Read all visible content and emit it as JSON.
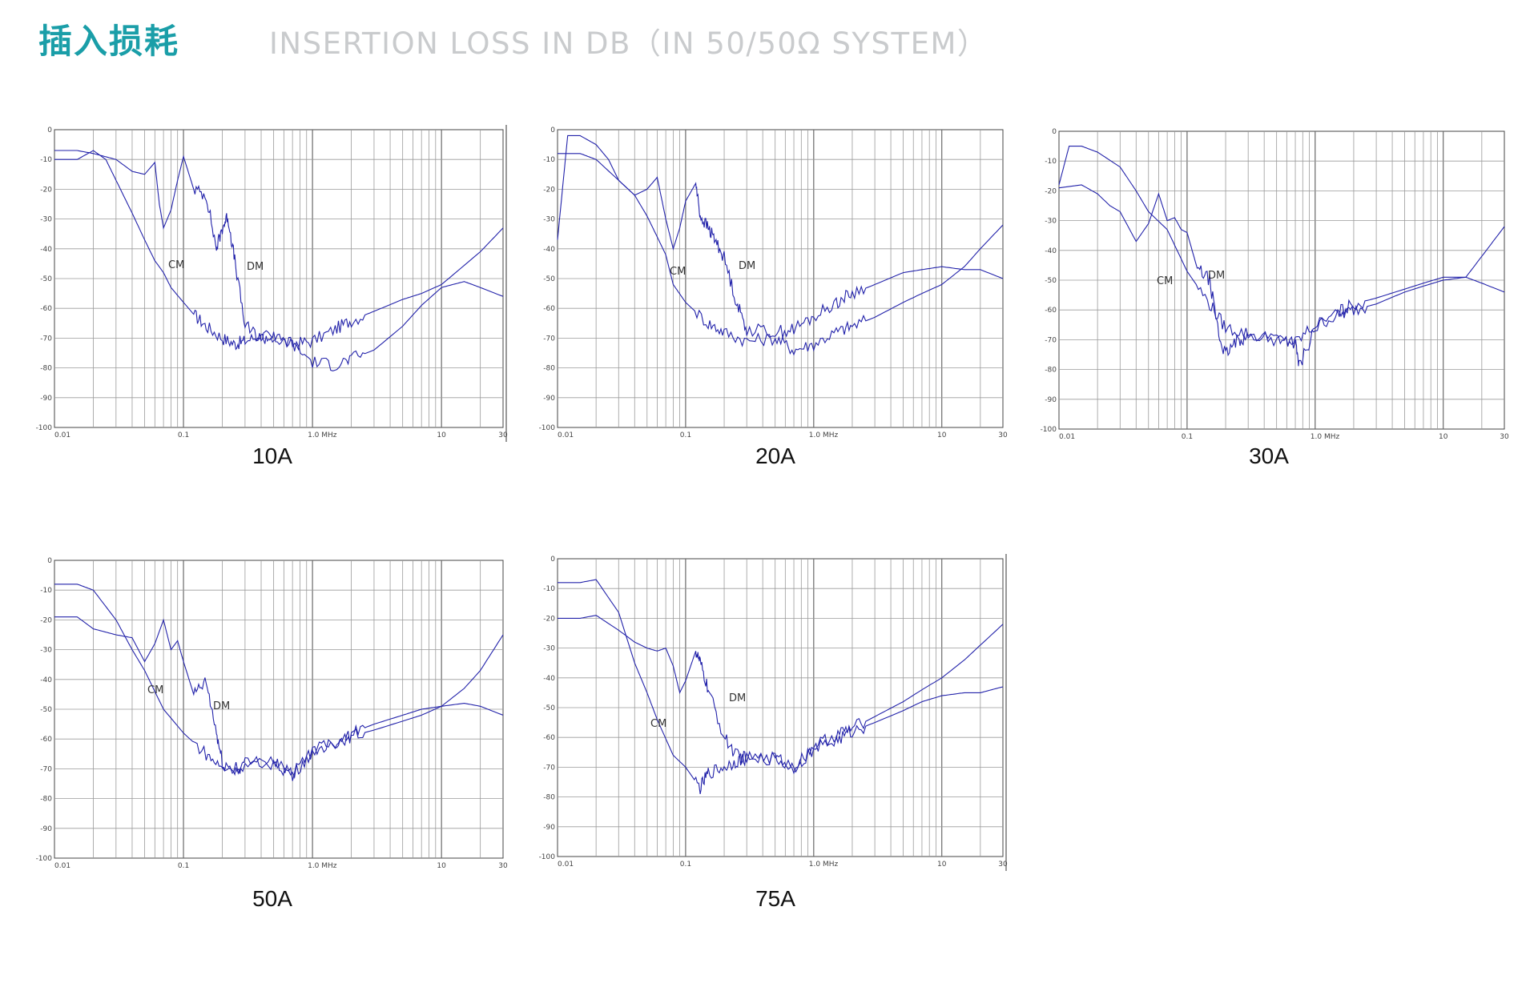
{
  "header": {
    "title_cn": "插入损耗",
    "title_en": "INSERTION LOSS IN DB（IN 50/50Ω SYSTEM）"
  },
  "colors": {
    "accent": "#1a9ea8",
    "subtitle": "#c9cbcd",
    "curve": "#2222aa",
    "grid": "#9a9a9a",
    "grid_major": "#6a6a6a"
  },
  "chart_data": [
    {
      "type": "line",
      "caption": "10A",
      "x_scale": "log",
      "xlim": [
        0.01,
        30
      ],
      "ylim": [
        -100,
        0
      ],
      "x_ticks": [
        "0.01",
        "0.1",
        "1.0  MHz",
        "10",
        "30"
      ],
      "y_ticks": [
        "0",
        "-10",
        "-20",
        "-30",
        "-40",
        "-50",
        "-60",
        "-70",
        "-80",
        "-90",
        "-100"
      ],
      "annotations": [
        "CM",
        "DM"
      ],
      "series": [
        {
          "x": [
            0.01,
            0.015,
            0.02,
            0.025,
            0.03,
            0.04,
            0.05,
            0.06,
            0.07,
            0.08,
            0.1,
            0.12,
            0.15,
            0.2,
            0.25,
            0.3,
            0.4,
            0.5,
            0.7,
            1,
            1.5,
            2,
            3,
            5,
            7,
            10,
            20,
            30
          ],
          "y": [
            -10,
            -10,
            -7,
            -10,
            -17,
            -28,
            -37,
            -44,
            -48,
            -53,
            -58,
            -62,
            -66,
            -70,
            -72,
            -71,
            -69,
            -70,
            -72,
            -71,
            -67,
            -64,
            -61,
            -57,
            -55,
            -52,
            -41,
            -33
          ]
        },
        {
          "x": [
            0.01,
            0.015,
            0.02,
            0.03,
            0.04,
            0.05,
            0.06,
            0.065,
            0.07,
            0.08,
            0.09,
            0.1,
            0.12,
            0.15,
            0.18,
            0.2,
            0.22,
            0.25,
            0.3,
            0.4,
            0.5,
            0.7,
            1,
            1.5,
            2,
            3,
            5,
            7,
            10,
            15,
            20,
            30
          ],
          "y": [
            -7,
            -7,
            -8,
            -10,
            -14,
            -15,
            -11,
            -25,
            -33,
            -27,
            -17,
            -9,
            -20,
            -22,
            -40,
            -33,
            -29,
            -44,
            -66,
            -70,
            -70,
            -72,
            -78,
            -79,
            -77,
            -74,
            -66,
            -59,
            -53,
            -51,
            -53,
            -56
          ]
        }
      ]
    },
    {
      "type": "line",
      "caption": "20A",
      "x_scale": "log",
      "xlim": [
        0.01,
        30
      ],
      "ylim": [
        -100,
        0
      ],
      "x_ticks": [
        "0.01",
        "0.1",
        "1.0  MHz",
        "10",
        "30"
      ],
      "y_ticks": [
        "0",
        "-10",
        "-20",
        "-30",
        "-40",
        "-50",
        "-60",
        "-70",
        "-80",
        "-90",
        "-100"
      ],
      "annotations": [
        "CM",
        "DM"
      ],
      "series": [
        {
          "x": [
            0.01,
            0.015,
            0.02,
            0.03,
            0.04,
            0.05,
            0.06,
            0.07,
            0.08,
            0.1,
            0.15,
            0.2,
            0.3,
            0.5,
            0.7,
            1,
            1.5,
            2,
            3,
            5,
            7,
            10,
            15,
            20,
            30
          ],
          "y": [
            -8,
            -8,
            -10,
            -17,
            -22,
            -29,
            -36,
            -42,
            -52,
            -58,
            -65,
            -68,
            -71,
            -70,
            -74,
            -72,
            -68,
            -66,
            -63,
            -58,
            -55,
            -52,
            -46,
            -40,
            -32
          ]
        },
        {
          "x": [
            0.01,
            0.012,
            0.015,
            0.02,
            0.025,
            0.03,
            0.04,
            0.05,
            0.06,
            0.07,
            0.08,
            0.09,
            0.1,
            0.12,
            0.13,
            0.15,
            0.17,
            0.2,
            0.25,
            0.3,
            0.5,
            0.7,
            1,
            1.5,
            2,
            3,
            5,
            7,
            10,
            15,
            20,
            30
          ],
          "y": [
            -37,
            -2,
            -2,
            -5,
            -10,
            -17,
            -22,
            -20,
            -16,
            -30,
            -40,
            -33,
            -24,
            -18,
            -29,
            -33,
            -37,
            -43,
            -58,
            -67,
            -68,
            -67,
            -63,
            -58,
            -55,
            -52,
            -48,
            -47,
            -46,
            -47,
            -47,
            -50
          ]
        }
      ]
    },
    {
      "type": "line",
      "caption": "30A",
      "x_scale": "log",
      "xlim": [
        0.01,
        30
      ],
      "ylim": [
        -100,
        0
      ],
      "x_ticks": [
        "0.01",
        "0.1",
        "1.0  MHz",
        "10",
        "30"
      ],
      "y_ticks": [
        "0",
        "-10",
        "-20",
        "-30",
        "-40",
        "-50",
        "-60",
        "-70",
        "-80",
        "-90",
        "-100"
      ],
      "annotations": [
        "CM",
        "DM"
      ],
      "series": [
        {
          "x": [
            0.01,
            0.012,
            0.015,
            0.02,
            0.03,
            0.04,
            0.05,
            0.07,
            0.1,
            0.15,
            0.2,
            0.3,
            0.5,
            0.7,
            1,
            1.5,
            2,
            3,
            5,
            7,
            10,
            15,
            20,
            30
          ],
          "y": [
            -18,
            -5,
            -5,
            -7,
            -12,
            -20,
            -27,
            -33,
            -47,
            -58,
            -66,
            -68,
            -70,
            -71,
            -65,
            -62,
            -60,
            -58,
            -54,
            -52,
            -50,
            -49,
            -42,
            -32
          ]
        },
        {
          "x": [
            0.01,
            0.015,
            0.02,
            0.025,
            0.03,
            0.04,
            0.05,
            0.06,
            0.07,
            0.08,
            0.09,
            0.1,
            0.12,
            0.15,
            0.18,
            0.2,
            0.25,
            0.3,
            0.5,
            0.7,
            0.75,
            1,
            1.5,
            2,
            3,
            5,
            7,
            10,
            15,
            20,
            30
          ],
          "y": [
            -19,
            -18,
            -21,
            -25,
            -27,
            -37,
            -31,
            -21,
            -30,
            -29,
            -33,
            -34,
            -46,
            -50,
            -70,
            -75,
            -70,
            -69,
            -69,
            -71,
            -79,
            -66,
            -61,
            -58,
            -56,
            -53,
            -51,
            -49,
            -49,
            -51,
            -54
          ]
        }
      ]
    },
    {
      "type": "line",
      "caption": "50A",
      "x_scale": "log",
      "xlim": [
        0.01,
        30
      ],
      "ylim": [
        -100,
        0
      ],
      "x_ticks": [
        "0.01",
        "0.1",
        "1.0  MHz",
        "10",
        "30"
      ],
      "y_ticks": [
        "0",
        "-10",
        "-20",
        "-30",
        "-40",
        "-50",
        "-60",
        "-70",
        "-80",
        "-90",
        "-100"
      ],
      "annotations": [
        "CM",
        "DM"
      ],
      "series": [
        {
          "x": [
            0.01,
            0.015,
            0.02,
            0.03,
            0.04,
            0.05,
            0.07,
            0.1,
            0.15,
            0.2,
            0.3,
            0.5,
            0.7,
            1,
            1.5,
            2,
            3,
            5,
            7,
            10,
            15,
            20,
            30
          ],
          "y": [
            -8,
            -8,
            -10,
            -20,
            -30,
            -37,
            -50,
            -58,
            -65,
            -70,
            -69,
            -68,
            -72,
            -64,
            -61,
            -59,
            -57,
            -54,
            -52,
            -49,
            -43,
            -37,
            -25
          ]
        },
        {
          "x": [
            0.01,
            0.015,
            0.02,
            0.03,
            0.04,
            0.05,
            0.06,
            0.07,
            0.08,
            0.09,
            0.1,
            0.12,
            0.15,
            0.18,
            0.2,
            0.25,
            0.3,
            0.5,
            0.7,
            1,
            1.5,
            2,
            3,
            5,
            7,
            10,
            15,
            20,
            30
          ],
          "y": [
            -19,
            -19,
            -23,
            -25,
            -26,
            -34,
            -28,
            -20,
            -30,
            -27,
            -34,
            -45,
            -41,
            -58,
            -68,
            -71,
            -68,
            -67,
            -72,
            -64,
            -61,
            -58,
            -55,
            -52,
            -50,
            -49,
            -48,
            -49,
            -52
          ]
        }
      ]
    },
    {
      "type": "line",
      "caption": "75A",
      "x_scale": "log",
      "xlim": [
        0.01,
        30
      ],
      "ylim": [
        -100,
        0
      ],
      "x_ticks": [
        "0.01",
        "0.1",
        "1.0  MHz",
        "10",
        "30"
      ],
      "y_ticks": [
        "0",
        "-10",
        "-20",
        "-30",
        "-40",
        "-50",
        "-60",
        "-70",
        "-80",
        "-90",
        "-100"
      ],
      "annotations": [
        "DM",
        "CM"
      ],
      "series": [
        {
          "x": [
            0.01,
            0.015,
            0.02,
            0.03,
            0.04,
            0.05,
            0.06,
            0.08,
            0.1,
            0.13,
            0.15,
            0.2,
            0.25,
            0.3,
            0.5,
            0.7,
            1,
            1.5,
            2,
            3,
            5,
            7,
            10,
            15,
            20,
            30
          ],
          "y": [
            -8,
            -8,
            -7,
            -18,
            -35,
            -45,
            -54,
            -66,
            -70,
            -77,
            -72,
            -70,
            -68,
            -67,
            -67,
            -70,
            -63,
            -59,
            -57,
            -53,
            -48,
            -44,
            -40,
            -34,
            -29,
            -22
          ]
        },
        {
          "x": [
            0.01,
            0.015,
            0.02,
            0.03,
            0.04,
            0.05,
            0.06,
            0.07,
            0.08,
            0.09,
            0.1,
            0.12,
            0.13,
            0.15,
            0.2,
            0.25,
            0.3,
            0.5,
            0.7,
            1,
            1.5,
            2,
            3,
            5,
            7,
            10,
            15,
            20,
            30
          ],
          "y": [
            -20,
            -20,
            -19,
            -24,
            -28,
            -30,
            -31,
            -30,
            -36,
            -45,
            -41,
            -31,
            -35,
            -44,
            -60,
            -66,
            -67,
            -67,
            -70,
            -64,
            -61,
            -58,
            -55,
            -51,
            -48,
            -46,
            -45,
            -45,
            -43
          ]
        }
      ]
    }
  ]
}
